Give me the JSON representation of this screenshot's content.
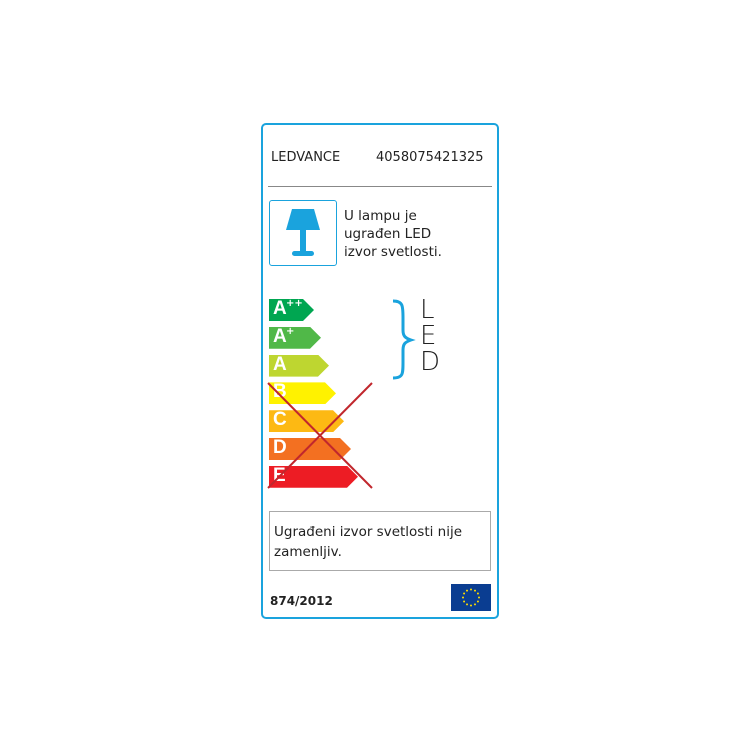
{
  "header": {
    "brand": "LEDVANCE",
    "code": "4058075421325"
  },
  "info": {
    "text_lines": [
      "U lampu je",
      "ugrađen LED",
      "izvor svetlosti."
    ],
    "icon": "table-lamp-icon"
  },
  "classes": [
    {
      "letter": "A",
      "sup": "++",
      "color": "#00a651"
    },
    {
      "letter": "A",
      "sup": "+",
      "color": "#50b848"
    },
    {
      "letter": "A",
      "sup": "",
      "color": "#bed630"
    },
    {
      "letter": "B",
      "sup": "",
      "color": "#fff200"
    },
    {
      "letter": "C",
      "sup": "",
      "color": "#fdb913"
    },
    {
      "letter": "D",
      "sup": "",
      "color": "#f37021"
    },
    {
      "letter": "E",
      "sup": "",
      "color": "#ed1c24"
    }
  ],
  "compatible_label": [
    "L",
    "E",
    "D"
  ],
  "crossed_out_classes": [
    "B",
    "C",
    "D",
    "E"
  ],
  "note": {
    "lines": [
      "Ugrađeni izvor svetlosti nije",
      "zamenljiv."
    ]
  },
  "footer": {
    "regulation": "874/2012",
    "flag": "eu-flag-icon"
  },
  "colors": {
    "accent": "#1aa3dd",
    "cross": "#c1272d"
  }
}
